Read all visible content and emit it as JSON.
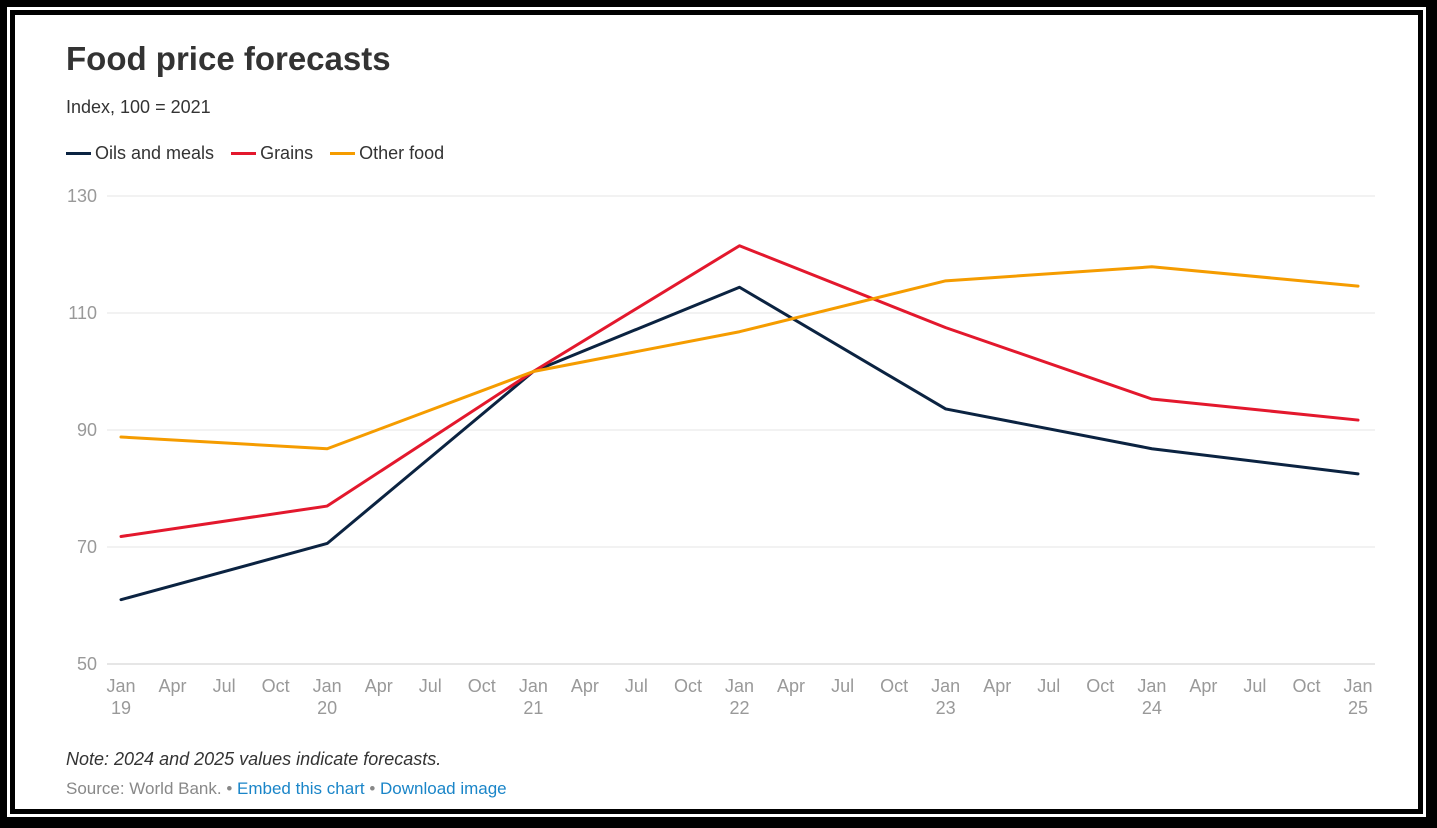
{
  "chart_data": {
    "type": "line",
    "title": "Food price forecasts",
    "subtitle": "Index, 100 = 2021",
    "xlabel": "",
    "ylabel": "",
    "ylim": [
      50,
      130
    ],
    "yticks": [
      130,
      110,
      90,
      70,
      50
    ],
    "x": [
      2019,
      2020,
      2021,
      2022,
      2023,
      2024,
      2025
    ],
    "xlim": [
      2019,
      2025
    ],
    "xtick_labels": [
      {
        "month": "Jan",
        "year": "19"
      },
      {
        "month": "Apr",
        "year": ""
      },
      {
        "month": "Jul",
        "year": ""
      },
      {
        "month": "Oct",
        "year": ""
      },
      {
        "month": "Jan",
        "year": "20"
      },
      {
        "month": "Apr",
        "year": ""
      },
      {
        "month": "Jul",
        "year": ""
      },
      {
        "month": "Oct",
        "year": ""
      },
      {
        "month": "Jan",
        "year": "21"
      },
      {
        "month": "Apr",
        "year": ""
      },
      {
        "month": "Jul",
        "year": ""
      },
      {
        "month": "Oct",
        "year": ""
      },
      {
        "month": "Jan",
        "year": "22"
      },
      {
        "month": "Apr",
        "year": ""
      },
      {
        "month": "Jul",
        "year": ""
      },
      {
        "month": "Oct",
        "year": ""
      },
      {
        "month": "Jan",
        "year": "23"
      },
      {
        "month": "Apr",
        "year": ""
      },
      {
        "month": "Jul",
        "year": ""
      },
      {
        "month": "Oct",
        "year": ""
      },
      {
        "month": "Jan",
        "year": "24"
      },
      {
        "month": "Apr",
        "year": ""
      },
      {
        "month": "Jul",
        "year": ""
      },
      {
        "month": "Oct",
        "year": ""
      },
      {
        "month": "Jan",
        "year": "25"
      }
    ],
    "grid": true,
    "legend_position": "top-left",
    "series": [
      {
        "name": "Oils and meals",
        "color": "#0b2341",
        "values": [
          61.0,
          70.6,
          100.0,
          114.4,
          93.6,
          86.8,
          82.5
        ]
      },
      {
        "name": "Grains",
        "color": "#e3182d",
        "values": [
          71.8,
          77.0,
          100.0,
          121.5,
          107.5,
          95.3,
          91.7
        ]
      },
      {
        "name": "Other food",
        "color": "#f59c00",
        "values": [
          88.8,
          86.8,
          100.0,
          106.8,
          115.5,
          117.9,
          114.6
        ]
      }
    ]
  },
  "footer": {
    "note": "Note: 2024 and 2025 values indicate forecasts.",
    "source": "Source: World Bank.",
    "separator": "•",
    "embed_link": "Embed this chart",
    "download_link": "Download image"
  }
}
